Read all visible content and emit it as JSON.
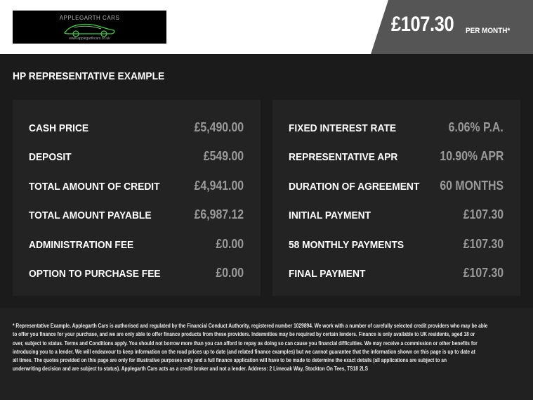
{
  "header": {
    "logo_title": "APPLEGARTH CARS",
    "logo_url": "www.applegarthcars.co.uk",
    "monthly_price": "£107.30",
    "per_month": "PER MONTH*",
    "banner_color": "#555555",
    "logo_accent": "#3fd13f"
  },
  "title": "HP REPRESENTATIVE EXAMPLE",
  "left_panel": [
    {
      "label": "CASH PRICE",
      "value": "£5,490.00"
    },
    {
      "label": "DEPOSIT",
      "value": "£549.00"
    },
    {
      "label": "TOTAL AMOUNT OF CREDIT",
      "value": "£4,941.00"
    },
    {
      "label": "TOTAL AMOUNT PAYABLE",
      "value": "£6,987.12"
    },
    {
      "label": "ADMINISTRATION FEE",
      "value": "£0.00"
    },
    {
      "label": "OPTION TO PURCHASE FEE",
      "value": "£0.00"
    }
  ],
  "right_panel": [
    {
      "label": "FIXED INTEREST RATE",
      "value": "6.06% P.A."
    },
    {
      "label": "REPRESENTATIVE APR",
      "value": "10.90% APR"
    },
    {
      "label": "DURATION OF AGREEMENT",
      "value": "60 MONTHS"
    },
    {
      "label": "INITIAL PAYMENT",
      "value": "£107.30"
    },
    {
      "label": "58 MONTHLY PAYMENTS",
      "value": "£107.30"
    },
    {
      "label": "FINAL PAYMENT",
      "value": "£107.30"
    }
  ],
  "disclaimer": [
    "* Representative Example. Applegarth Cars is authorised and regulated by the Financial Conduct Authority, registered number 1029894. We work with a number of carefully selected credit providers who may be able",
    "to offer you finance for your purchase, and we are only able to offer finance products from these providers. Indemnities may be required by certain lenders. Finance is only available to UK residents, aged 18 or",
    "over, subject to status. Terms and Conditions apply. You should not borrow more than you can afford to repay as doing so can cause you financial difficulties. We may receive a commission or other benefits for",
    "introducing you to a lender. We will endeavour to keep information on the road prices up to date (and related finance examples) but we cannot guarantee that the information shown on this page is up to date at",
    "all times. The quotes provided on this page are only for illustrative purposes only and a full finance application will have to be made to determine the exact details (all applications are subject to an",
    "underwriting decision and are subject to status). Applegarth Cars acts as a credit broker and not a lender. Address:  2 Limeoak Way, Stockton On Tees, TS18 2LS"
  ]
}
